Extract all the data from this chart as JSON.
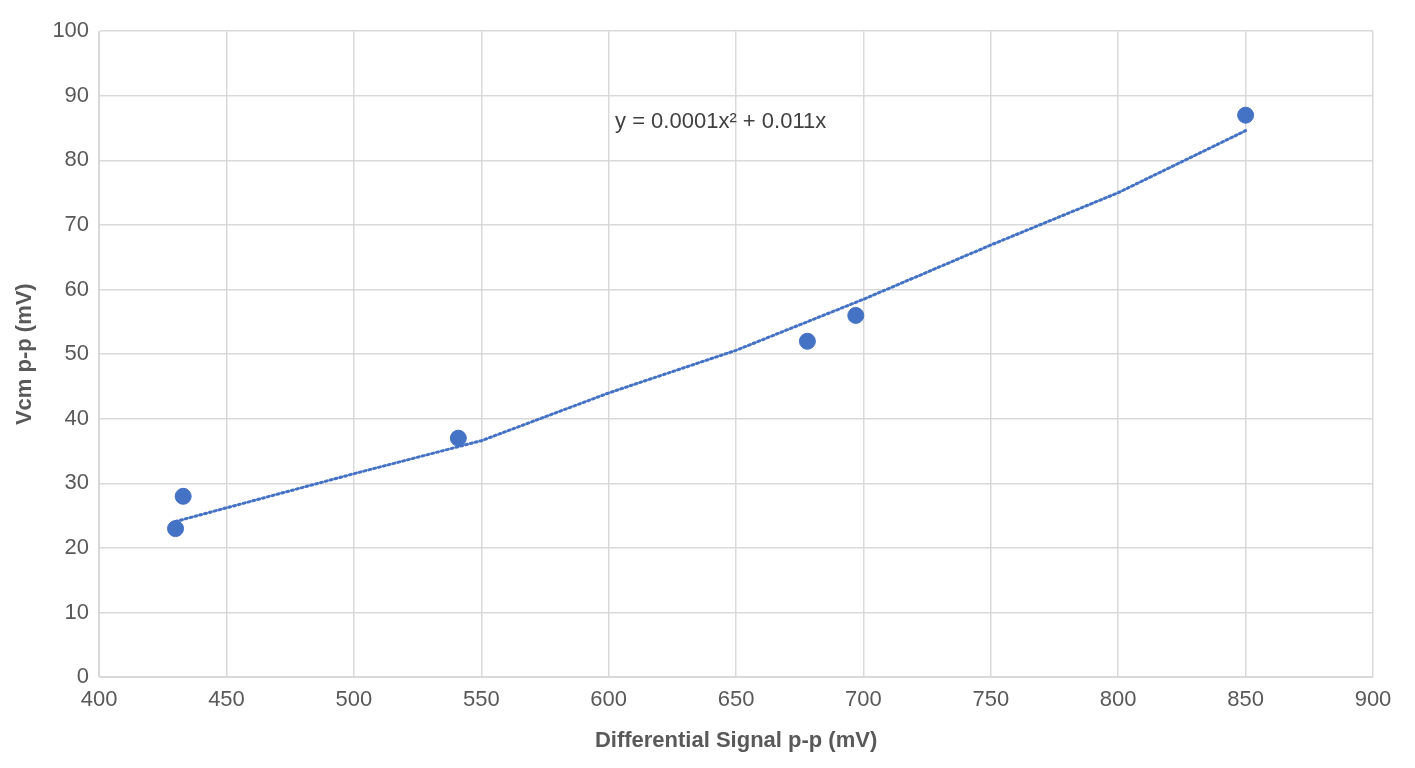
{
  "chart_data": {
    "type": "scatter",
    "xlabel": "Differential Signal p-p (mV)",
    "ylabel": "Vcm p-p (mV)",
    "annotations": [
      "y = 0.0001x² + 0.011x"
    ],
    "xlim": [
      400,
      900
    ],
    "xticks": [
      400,
      450,
      500,
      550,
      600,
      650,
      700,
      750,
      800,
      850,
      900
    ],
    "ylim": [
      0,
      100
    ],
    "yticks": [
      0,
      10,
      20,
      30,
      40,
      50,
      60,
      70,
      80,
      90,
      100
    ],
    "grid": true,
    "legend": false,
    "series": [
      {
        "type": "scatter",
        "color": "#4472c4",
        "marker": "circle",
        "x": [
          430,
          433,
          541,
          678,
          697,
          850
        ],
        "values": [
          23,
          28,
          37,
          52,
          56,
          87
        ]
      },
      {
        "type": "line",
        "color": "#4472c4",
        "line_style": "dotted",
        "marker": "none",
        "x": [
          430,
          500,
          550,
          600,
          650,
          700,
          750,
          800,
          850
        ],
        "values": [
          24.1,
          31.5,
          36.6,
          44,
          50.6,
          58.5,
          66.9,
          75,
          84.6
        ]
      }
    ]
  }
}
